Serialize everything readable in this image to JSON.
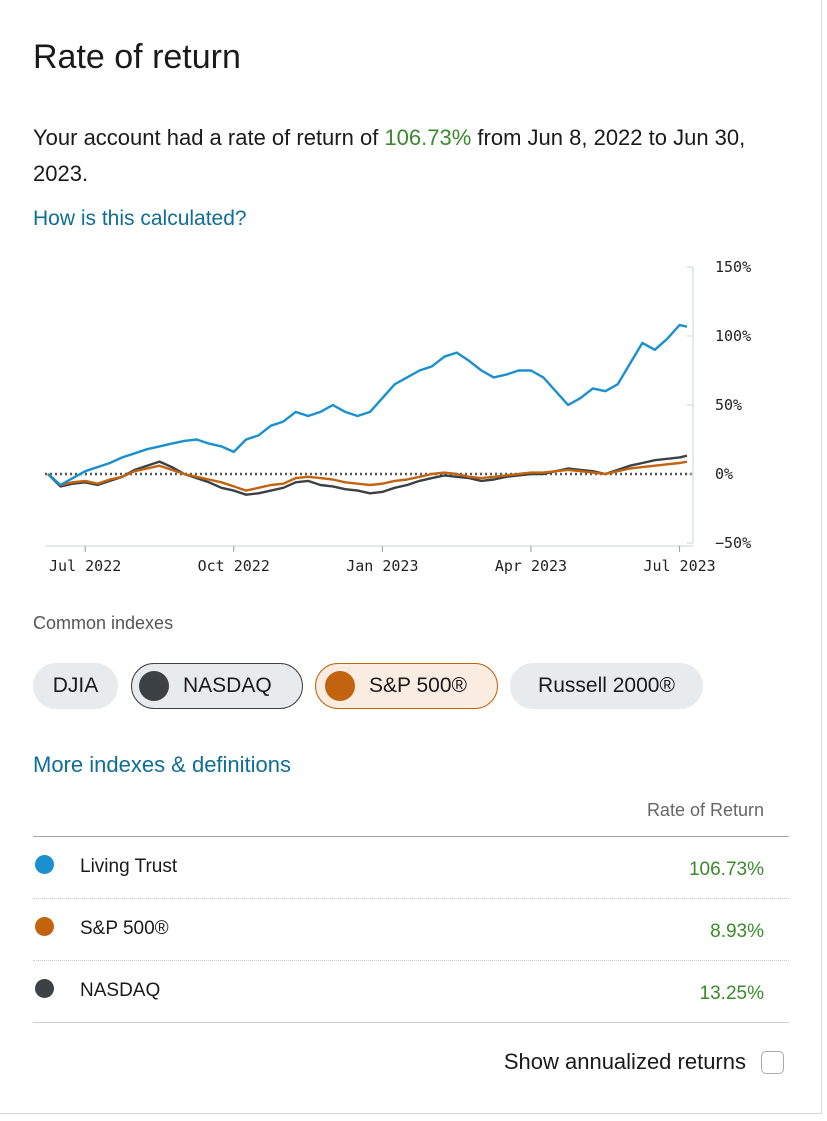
{
  "header": {
    "title": "Rate of return"
  },
  "summary": {
    "prefix": "Your account had a rate of return of",
    "rate": "106.73%",
    "suffix": "from Jun 8, 2022 to Jun 30, 2023."
  },
  "links": {
    "how_calculated": "How is this calculated?",
    "more_indexes": "More indexes & definitions"
  },
  "colors": {
    "living_trust": "#1a90cf",
    "sp500": "#c2630f",
    "nasdaq": "#3c4146",
    "positive": "#3a8a2c",
    "link": "#0e6e96"
  },
  "chart_data": {
    "type": "line",
    "ylim": [
      -50,
      150
    ],
    "y_ticks": [
      "150%",
      "100%",
      "50%",
      "0%",
      "−50%"
    ],
    "x_ticks": [
      "Jul 2022",
      "Oct 2022",
      "Jan 2023",
      "Apr 2023",
      "Jul 2023"
    ],
    "x_tick_months": [
      0.75,
      3.75,
      6.75,
      9.75,
      12.75
    ],
    "x_max_months": 12.9,
    "series": [
      {
        "name": "Living Trust",
        "color": "#1a90cf",
        "x": [
          0,
          0.25,
          0.5,
          0.75,
          1,
          1.25,
          1.5,
          1.75,
          2,
          2.25,
          2.5,
          2.75,
          3,
          3.25,
          3.5,
          3.75,
          4,
          4.25,
          4.5,
          4.75,
          5,
          5.25,
          5.5,
          5.75,
          6,
          6.25,
          6.5,
          6.75,
          7,
          7.25,
          7.5,
          7.75,
          8,
          8.25,
          8.5,
          8.75,
          9,
          9.25,
          9.5,
          9.75,
          10,
          10.25,
          10.5,
          10.75,
          11,
          11.25,
          11.5,
          11.75,
          12,
          12.25,
          12.5,
          12.75,
          12.9
        ],
        "values": [
          0,
          -8,
          -3,
          2,
          5,
          8,
          12,
          15,
          18,
          20,
          22,
          24,
          25,
          22,
          20,
          16,
          25,
          28,
          35,
          38,
          45,
          42,
          45,
          50,
          45,
          42,
          45,
          55,
          65,
          70,
          75,
          78,
          85,
          88,
          82,
          75,
          70,
          72,
          75,
          75,
          70,
          60,
          50,
          55,
          62,
          60,
          65,
          80,
          95,
          90,
          98,
          108,
          106.73
        ]
      },
      {
        "name": "S&P 500®",
        "color": "#c2630f",
        "x": [
          0,
          0.25,
          0.5,
          0.75,
          1,
          1.25,
          1.5,
          1.75,
          2,
          2.25,
          2.5,
          2.75,
          3,
          3.25,
          3.5,
          3.75,
          4,
          4.25,
          4.5,
          4.75,
          5,
          5.25,
          5.5,
          5.75,
          6,
          6.25,
          6.5,
          6.75,
          7,
          7.25,
          7.5,
          7.75,
          8,
          8.25,
          8.5,
          8.75,
          9,
          9.25,
          9.5,
          9.75,
          10,
          10.25,
          10.5,
          10.75,
          11,
          11.25,
          11.5,
          11.75,
          12,
          12.25,
          12.5,
          12.75,
          12.9
        ],
        "values": [
          0,
          -8,
          -6,
          -5,
          -7,
          -4,
          -2,
          2,
          4,
          6,
          3,
          0,
          -2,
          -4,
          -6,
          -9,
          -12,
          -10,
          -8,
          -7,
          -3,
          -2,
          -3,
          -4,
          -6,
          -7,
          -8,
          -7,
          -5,
          -4,
          -2,
          0,
          1,
          0,
          -2,
          -3,
          -2,
          -1,
          0,
          1,
          1,
          2,
          3,
          2,
          1,
          0,
          2,
          4,
          5,
          6,
          7,
          8,
          8.93
        ]
      },
      {
        "name": "NASDAQ",
        "color": "#3c4146",
        "x": [
          0,
          0.25,
          0.5,
          0.75,
          1,
          1.25,
          1.5,
          1.75,
          2,
          2.25,
          2.5,
          2.75,
          3,
          3.25,
          3.5,
          3.75,
          4,
          4.25,
          4.5,
          4.75,
          5,
          5.25,
          5.5,
          5.75,
          6,
          6.25,
          6.5,
          6.75,
          7,
          7.25,
          7.5,
          7.75,
          8,
          8.25,
          8.5,
          8.75,
          9,
          9.25,
          9.5,
          9.75,
          10,
          10.25,
          10.5,
          10.75,
          11,
          11.25,
          11.5,
          11.75,
          12,
          12.25,
          12.5,
          12.75,
          12.9
        ],
        "values": [
          0,
          -9,
          -7,
          -6,
          -8,
          -5,
          -2,
          3,
          6,
          9,
          5,
          0,
          -3,
          -6,
          -10,
          -12,
          -15,
          -14,
          -12,
          -10,
          -6,
          -5,
          -8,
          -9,
          -11,
          -12,
          -14,
          -13,
          -10,
          -8,
          -5,
          -3,
          -1,
          -2,
          -3,
          -5,
          -4,
          -2,
          -1,
          0,
          0,
          2,
          4,
          3,
          2,
          0,
          3,
          6,
          8,
          10,
          11,
          12,
          13.25
        ]
      }
    ]
  },
  "indexes": {
    "label": "Common indexes",
    "chips": [
      {
        "label": "DJIA",
        "selected": false
      },
      {
        "label": "NASDAQ",
        "selected": true,
        "color": "#3c4146"
      },
      {
        "label": "S&P 500®",
        "selected": true,
        "color": "#c2630f"
      },
      {
        "label": "Russell 2000®",
        "selected": false
      }
    ]
  },
  "table": {
    "column_header": "Rate of Return",
    "rows": [
      {
        "name": "Living Trust",
        "value": "106.73%",
        "color": "#1a90cf"
      },
      {
        "name": "S&P 500®",
        "value": "8.93%",
        "color": "#c2630f"
      },
      {
        "name": "NASDAQ",
        "value": "13.25%",
        "color": "#3c4146"
      }
    ]
  },
  "annualized": {
    "label": "Show annualized returns",
    "checked": false
  }
}
